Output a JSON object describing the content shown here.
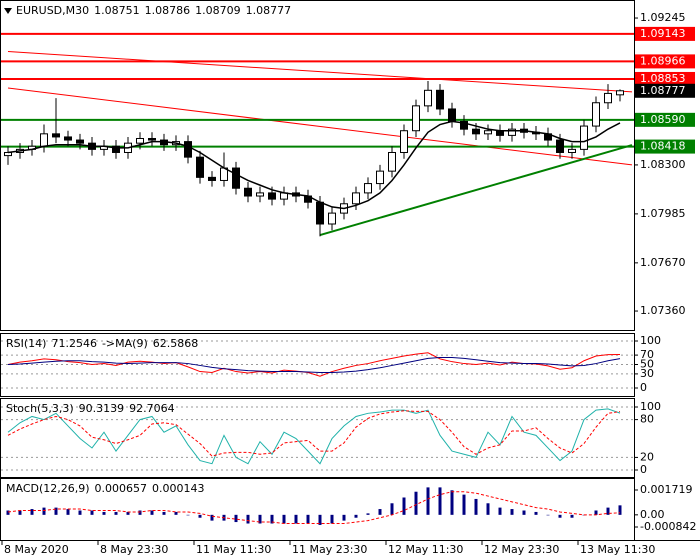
{
  "chart_data": [
    {
      "type": "candlestick",
      "title_parts": [
        "EURUSD,M30",
        1.08751,
        1.08786,
        1.08709,
        1.08777
      ],
      "categories": [
        "8 May 2020",
        null,
        null,
        null,
        null,
        null,
        null,
        null,
        "8 May 23:30",
        null,
        null,
        null,
        null,
        null,
        null,
        null,
        "11 May 11:30",
        null,
        null,
        null,
        null,
        null,
        null,
        null,
        "11 May 23:30",
        null,
        null,
        null,
        null,
        null,
        null,
        null,
        "12 May 11:30",
        null,
        null,
        null,
        null,
        null,
        null,
        null,
        "12 May 23:30",
        null,
        null,
        null,
        null,
        null,
        null,
        null,
        "13 May 11:30",
        null,
        null,
        null
      ],
      "opens": [
        1.0836,
        1.0838,
        1.084,
        1.0842,
        1.085,
        1.0848,
        1.0846,
        1.0844,
        1.084,
        1.0842,
        1.0838,
        1.0844,
        1.0847,
        1.0846,
        1.0843,
        1.0845,
        1.0835,
        1.0822,
        1.082,
        1.0828,
        1.0815,
        1.081,
        1.0812,
        1.0808,
        1.0812,
        1.081,
        1.0806,
        1.0792,
        1.0799,
        1.0805,
        1.0812,
        1.0818,
        1.0826,
        1.0838,
        1.0852,
        1.0868,
        1.0878,
        1.0866,
        1.0858,
        1.0853,
        1.085,
        1.0852,
        1.0849,
        1.0853,
        1.0851,
        1.085,
        1.0846,
        1.0838,
        1.084,
        1.0855,
        1.087,
        1.08751
      ],
      "highs": [
        1.0842,
        1.0844,
        1.0846,
        1.0856,
        1.0873,
        1.0852,
        1.085,
        1.0848,
        1.0846,
        1.0846,
        1.0848,
        1.0851,
        1.0851,
        1.085,
        1.0849,
        1.0849,
        1.0839,
        1.0826,
        1.0838,
        1.0832,
        1.0819,
        1.0816,
        1.0816,
        1.0816,
        1.0816,
        1.0814,
        1.081,
        1.0803,
        1.0809,
        1.0816,
        1.0822,
        1.083,
        1.0842,
        1.0856,
        1.0872,
        1.0884,
        1.0882,
        1.087,
        1.0862,
        1.0857,
        1.0856,
        1.0856,
        1.0857,
        1.0857,
        1.0855,
        1.0854,
        1.085,
        1.0844,
        1.0859,
        1.0874,
        1.0882,
        1.08786
      ],
      "lows": [
        1.083,
        1.0834,
        1.0836,
        1.0838,
        1.0844,
        1.0842,
        1.084,
        1.0836,
        1.0836,
        1.0834,
        1.0834,
        1.084,
        1.0842,
        1.0839,
        1.0839,
        1.0831,
        1.0818,
        1.0816,
        1.0816,
        1.0811,
        1.0806,
        1.0806,
        1.0804,
        1.0804,
        1.0806,
        1.0802,
        1.0784,
        1.0788,
        1.0795,
        1.0801,
        1.0808,
        1.0814,
        1.0822,
        1.0834,
        1.0848,
        1.0864,
        1.0862,
        1.0854,
        1.0849,
        1.0846,
        1.0846,
        1.0845,
        1.0845,
        1.0847,
        1.0846,
        1.0842,
        1.0834,
        1.0834,
        1.0836,
        1.0851,
        1.0866,
        1.08709
      ],
      "closes": [
        1.0838,
        1.084,
        1.0842,
        1.085,
        1.0848,
        1.0846,
        1.0844,
        1.084,
        1.0842,
        1.0838,
        1.0844,
        1.0847,
        1.0846,
        1.0843,
        1.0845,
        1.0835,
        1.0822,
        1.082,
        1.0828,
        1.0815,
        1.081,
        1.0812,
        1.0808,
        1.0812,
        1.081,
        1.0806,
        1.0792,
        1.0799,
        1.0805,
        1.0812,
        1.0818,
        1.0826,
        1.0838,
        1.0852,
        1.0868,
        1.0878,
        1.0866,
        1.0858,
        1.0853,
        1.085,
        1.0852,
        1.0849,
        1.0853,
        1.0851,
        1.085,
        1.0846,
        1.0838,
        1.084,
        1.0855,
        1.087,
        1.0876,
        1.08777
      ],
      "bull_color": "#ffffff",
      "bear_color": "#000000",
      "ma": {
        "color": "#000000",
        "values": [
          1.0838,
          1.0839,
          1.084,
          1.0842,
          1.0843,
          1.0843,
          1.0843,
          1.0842,
          1.0842,
          1.0841,
          1.0841,
          1.0843,
          1.0845,
          1.0845,
          1.0844,
          1.0842,
          1.0838,
          1.0833,
          1.0828,
          1.0824,
          1.082,
          1.0817,
          1.0814,
          1.0812,
          1.0811,
          1.081,
          1.0806,
          1.0803,
          1.0802,
          1.0804,
          1.0807,
          1.0812,
          1.082,
          1.083,
          1.0841,
          1.0851,
          1.0856,
          1.0858,
          1.0857,
          1.0855,
          1.0853,
          1.0852,
          1.0852,
          1.0852,
          1.0851,
          1.085,
          1.0847,
          1.0845,
          1.0845,
          1.0848,
          1.0853,
          1.0857
        ]
      },
      "levels": [
        {
          "value": 1.09143,
          "color": "#ff0000"
        },
        {
          "value": 1.08966,
          "color": "#ff0000"
        },
        {
          "value": 1.08853,
          "color": "#ff0000"
        },
        {
          "value": 1.0859,
          "label": "1.08590",
          "color": "#008000"
        },
        {
          "value": 1.08418,
          "color": "#008000"
        }
      ],
      "trendlines": [
        {
          "from": [
            0,
            1.0903
          ],
          "to": [
            52,
            1.0877
          ],
          "color": "#ff0000"
        },
        {
          "from": [
            0,
            1.08795
          ],
          "to": [
            52,
            1.083
          ],
          "color": "#ff0000"
        },
        {
          "from": [
            26,
            1.07849
          ],
          "to": [
            52,
            1.08428
          ],
          "color": "#008000"
        }
      ],
      "ylim": [
        1.07238,
        1.09361
      ],
      "yticks": [
        1.09245,
        {
          "value": 1.083,
          "label": "1.08300"
        },
        1.07985,
        {
          "value": 1.0767,
          "label": "1.07670"
        },
        {
          "value": 1.0736,
          "label": "1.07360"
        }
      ]
    },
    {
      "type": "line",
      "title_parts": [
        "RSI(14)",
        71.2546,
        "->MA(9)",
        62.5868
      ],
      "series": [
        {
          "color": "#ff0000",
          "values": [
            50,
            55,
            58,
            62,
            60,
            56,
            54,
            50,
            52,
            48,
            55,
            57,
            55,
            52,
            54,
            45,
            35,
            33,
            42,
            35,
            32,
            35,
            32,
            38,
            36,
            33,
            25,
            35,
            42,
            48,
            52,
            58,
            63,
            68,
            72,
            75,
            62,
            56,
            52,
            50,
            53,
            49,
            55,
            52,
            51,
            47,
            40,
            43,
            58,
            68,
            71,
            71.2546
          ]
        },
        {
          "color": "#000080",
          "values": [
            50,
            51,
            53,
            55,
            57,
            58,
            58,
            56,
            55,
            53,
            52,
            53,
            54,
            54,
            54,
            52,
            48,
            44,
            41,
            39,
            37,
            36,
            35,
            35,
            35,
            34,
            33,
            33,
            34,
            36,
            39,
            43,
            48,
            53,
            58,
            63,
            65,
            65,
            63,
            60,
            57,
            54,
            53,
            52,
            52,
            51,
            49,
            47,
            48,
            52,
            58,
            62.5868
          ]
        }
      ],
      "ylim": [
        -17,
        117
      ],
      "yticks": [
        100,
        70,
        50,
        30,
        0
      ],
      "grid": true
    },
    {
      "type": "line",
      "title_parts": [
        "Stoch(5,3,3)",
        90.3139,
        92.7064
      ],
      "series": [
        {
          "color": "#20b2aa",
          "values": [
            60,
            75,
            85,
            80,
            90,
            70,
            50,
            35,
            60,
            30,
            55,
            80,
            85,
            60,
            70,
            40,
            15,
            10,
            55,
            20,
            10,
            45,
            25,
            60,
            50,
            30,
            10,
            50,
            70,
            85,
            90,
            92,
            95,
            95,
            90,
            95,
            55,
            30,
            25,
            20,
            60,
            40,
            85,
            60,
            55,
            35,
            15,
            30,
            80,
            95,
            97,
            90.3139
          ]
        },
        {
          "color": "#ff0000",
          "dash": true,
          "values": [
            55,
            65,
            73,
            80,
            85,
            80,
            70,
            52,
            48,
            42,
            48,
            55,
            73,
            75,
            72,
            57,
            42,
            22,
            27,
            28,
            28,
            25,
            27,
            43,
            45,
            47,
            30,
            30,
            43,
            68,
            82,
            89,
            92,
            94,
            93,
            93,
            80,
            60,
            37,
            25,
            35,
            40,
            62,
            62,
            67,
            50,
            35,
            27,
            42,
            68,
            90,
            92.7064
          ]
        }
      ],
      "ylim": [
        -11.1,
        114.3
      ],
      "yticks": [
        100,
        80,
        20,
        0
      ],
      "grid": true
    },
    {
      "type": "macd",
      "title_parts": [
        "MACD(12,26,9)",
        0.000657,
        0.000143
      ],
      "series": [
        {
          "kind": "bar",
          "color": "#000080",
          "values": [
            0.0003,
            0.0003,
            0.0004,
            0.0005,
            0.0005,
            0.0004,
            0.0003,
            0.0003,
            0.0002,
            0.0002,
            0.0002,
            0.0003,
            0.0003,
            0.0002,
            0.0002,
            0.0,
            -0.0002,
            -0.0004,
            -0.0004,
            -0.0005,
            -0.0006,
            -0.0006,
            -0.0006,
            -0.0006,
            -0.0006,
            -0.0006,
            -0.0007,
            -0.0006,
            -0.0004,
            -0.0002,
            0.0001,
            0.0004,
            0.0008,
            0.0012,
            0.0016,
            0.0019,
            0.0019,
            0.0017,
            0.0014,
            0.0011,
            0.0008,
            0.0005,
            0.0004,
            0.0003,
            0.0002,
            0.0,
            -0.0002,
            -0.0002,
            0.0,
            0.0003,
            0.0005,
            0.000657
          ]
        },
        {
          "kind": "line",
          "color": "#ff0000",
          "dash": true,
          "values": [
            0.0002,
            0.0003,
            0.0003,
            0.0003,
            0.0004,
            0.0004,
            0.0004,
            0.0003,
            0.0003,
            0.0003,
            0.0002,
            0.0002,
            0.0003,
            0.0003,
            0.0002,
            0.0002,
            0.0001,
            -0.0001,
            -0.0002,
            -0.0003,
            -0.0004,
            -0.0005,
            -0.0005,
            -0.0006,
            -0.0006,
            -0.0006,
            -0.0006,
            -0.0006,
            -0.0006,
            -0.0005,
            -0.0004,
            -0.0002,
            0.0,
            0.0003,
            0.0007,
            0.0011,
            0.0014,
            0.0016,
            0.0016,
            0.0015,
            0.0013,
            0.0011,
            0.0009,
            0.0007,
            0.0005,
            0.0004,
            0.0002,
            0.0001,
            0.0,
            0.0,
            0.0001,
            0.000143
          ]
        }
      ],
      "ylim": [
        -0.001742,
        0.00255
      ],
      "yticks": [
        0.001719,
        {
          "value": 0,
          "label": "0.00"
        },
        -0.000842
      ]
    }
  ]
}
